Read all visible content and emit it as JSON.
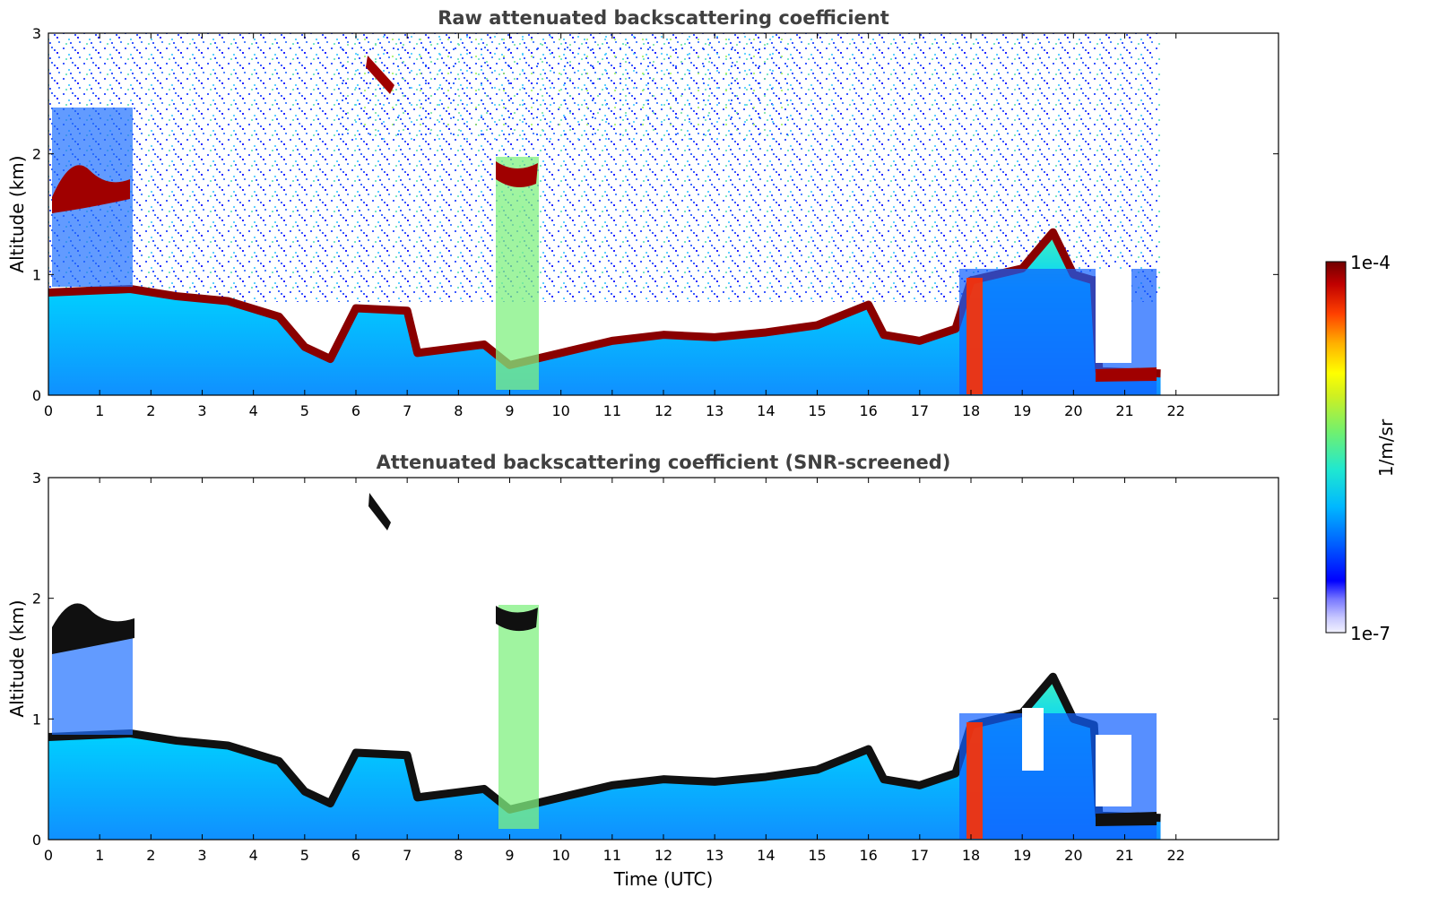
{
  "chart_data": [
    {
      "type": "heatmap",
      "title": "Raw attenuated backscattering coefficient",
      "xlabel": "",
      "ylabel": "Altitude (km)",
      "xlim": [
        0,
        24
      ],
      "ylim": [
        0,
        3
      ],
      "x_ticks": [
        "0",
        "1",
        "2",
        "3",
        "4",
        "5",
        "6",
        "7",
        "8",
        "9",
        "10",
        "11",
        "12",
        "13",
        "14",
        "15",
        "16",
        "17",
        "18",
        "19",
        "20",
        "21",
        "22"
      ],
      "y_ticks": [
        "0",
        "1",
        "2",
        "3"
      ],
      "data_end_hour": 21.7,
      "boundary_layer_top_km": [
        {
          "t": 0.0,
          "z": 0.85
        },
        {
          "t": 1.6,
          "z": 0.88
        },
        {
          "t": 2.5,
          "z": 0.82
        },
        {
          "t": 3.5,
          "z": 0.78
        },
        {
          "t": 4.5,
          "z": 0.65
        },
        {
          "t": 5.0,
          "z": 0.4
        },
        {
          "t": 5.5,
          "z": 0.3
        },
        {
          "t": 6.0,
          "z": 0.72
        },
        {
          "t": 7.0,
          "z": 0.7
        },
        {
          "t": 7.2,
          "z": 0.35
        },
        {
          "t": 8.5,
          "z": 0.42
        },
        {
          "t": 9.0,
          "z": 0.25
        },
        {
          "t": 10.0,
          "z": 0.35
        },
        {
          "t": 11.0,
          "z": 0.45
        },
        {
          "t": 12.0,
          "z": 0.5
        },
        {
          "t": 13.0,
          "z": 0.48
        },
        {
          "t": 14.0,
          "z": 0.52
        },
        {
          "t": 15.0,
          "z": 0.58
        },
        {
          "t": 16.0,
          "z": 0.75
        },
        {
          "t": 16.3,
          "z": 0.5
        },
        {
          "t": 17.0,
          "z": 0.45
        },
        {
          "t": 17.7,
          "z": 0.55
        },
        {
          "t": 18.0,
          "z": 0.95
        },
        {
          "t": 19.0,
          "z": 1.05
        },
        {
          "t": 19.6,
          "z": 1.35
        },
        {
          "t": 20.0,
          "z": 1.0
        },
        {
          "t": 20.4,
          "z": 0.95
        },
        {
          "t": 20.5,
          "z": 0.2
        },
        {
          "t": 21.7,
          "z": 0.18
        }
      ],
      "cloud_features_km": [
        {
          "t0": 0.1,
          "t1": 1.4,
          "z": 1.75,
          "label": "cloud"
        },
        {
          "t0": 6.3,
          "t1": 6.7,
          "z": 2.65,
          "label": "cloud"
        },
        {
          "t0": 8.8,
          "t1": 9.5,
          "z": 1.8,
          "label": "cloud"
        }
      ]
    },
    {
      "type": "heatmap",
      "title": "Attenuated backscattering coefficient (SNR-screened)",
      "xlabel": "Time (UTC)",
      "ylabel": "Altitude (km)",
      "xlim": [
        0,
        24
      ],
      "ylim": [
        0,
        3
      ],
      "x_ticks": [
        "0",
        "1",
        "2",
        "3",
        "4",
        "5",
        "6",
        "7",
        "8",
        "9",
        "10",
        "11",
        "12",
        "13",
        "14",
        "15",
        "16",
        "17",
        "18",
        "19",
        "20",
        "21",
        "22"
      ],
      "y_ticks": [
        "0",
        "1",
        "2",
        "3"
      ],
      "data_end_hour": 21.7
    }
  ],
  "colorbar": {
    "label": "1/m/sr",
    "max_label": "1e-4",
    "min_label": "1e-7",
    "scale": "log",
    "range": [
      1e-07,
      0.0001
    ],
    "colormap": [
      "#f2f2ff",
      "#c0c0ff",
      "#0000ff",
      "#0070ff",
      "#00c8ff",
      "#40f0c0",
      "#a0f040",
      "#ffff00",
      "#ffa000",
      "#ff3000",
      "#a00000",
      "#700000"
    ]
  }
}
